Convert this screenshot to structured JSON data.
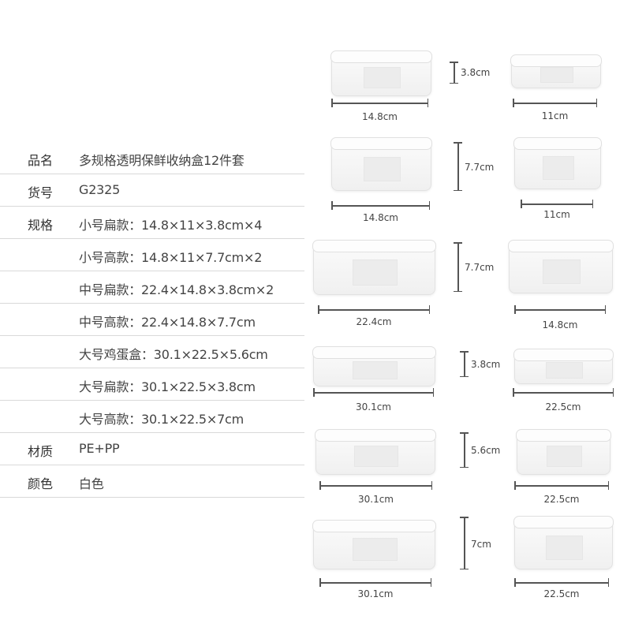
{
  "specs": [
    {
      "key": "品名",
      "value": "多规格透明保鲜收纳盒12件套"
    },
    {
      "key": "货号",
      "value": "G2325"
    },
    {
      "key": "规格",
      "value": "小号扁款：14.8×11×3.8cm×4"
    },
    {
      "key": "",
      "value": "小号高款：14.8×11×7.7cm×2"
    },
    {
      "key": "",
      "value": "中号扁款：22.4×14.8×3.8cm×2"
    },
    {
      "key": "",
      "value": "中号高款：22.4×14.8×7.7cm"
    },
    {
      "key": "",
      "value": "大号鸡蛋盒：30.1×22.5×5.6cm"
    },
    {
      "key": "",
      "value": "大号扁款：30.1×22.5×3.8cm"
    },
    {
      "key": "",
      "value": "大号高款：30.1×22.5×7cm"
    },
    {
      "key": "材质",
      "value": "PE+PP"
    },
    {
      "key": "颜色",
      "value": "白色"
    }
  ],
  "diagrams": [
    {
      "length": "14.8cm",
      "height": "3.8cm",
      "width": "11cm"
    },
    {
      "length": "14.8cm",
      "height": "7.7cm",
      "width": "11cm"
    },
    {
      "length": "22.4cm",
      "height": "7.7cm",
      "width": "14.8cm"
    },
    {
      "length": "30.1cm",
      "height": "3.8cm",
      "width": "22.5cm"
    },
    {
      "length": "30.1cm",
      "height": "5.6cm",
      "width": "22.5cm"
    },
    {
      "length": "30.1cm",
      "height": "7cm",
      "width": "22.5cm"
    }
  ]
}
